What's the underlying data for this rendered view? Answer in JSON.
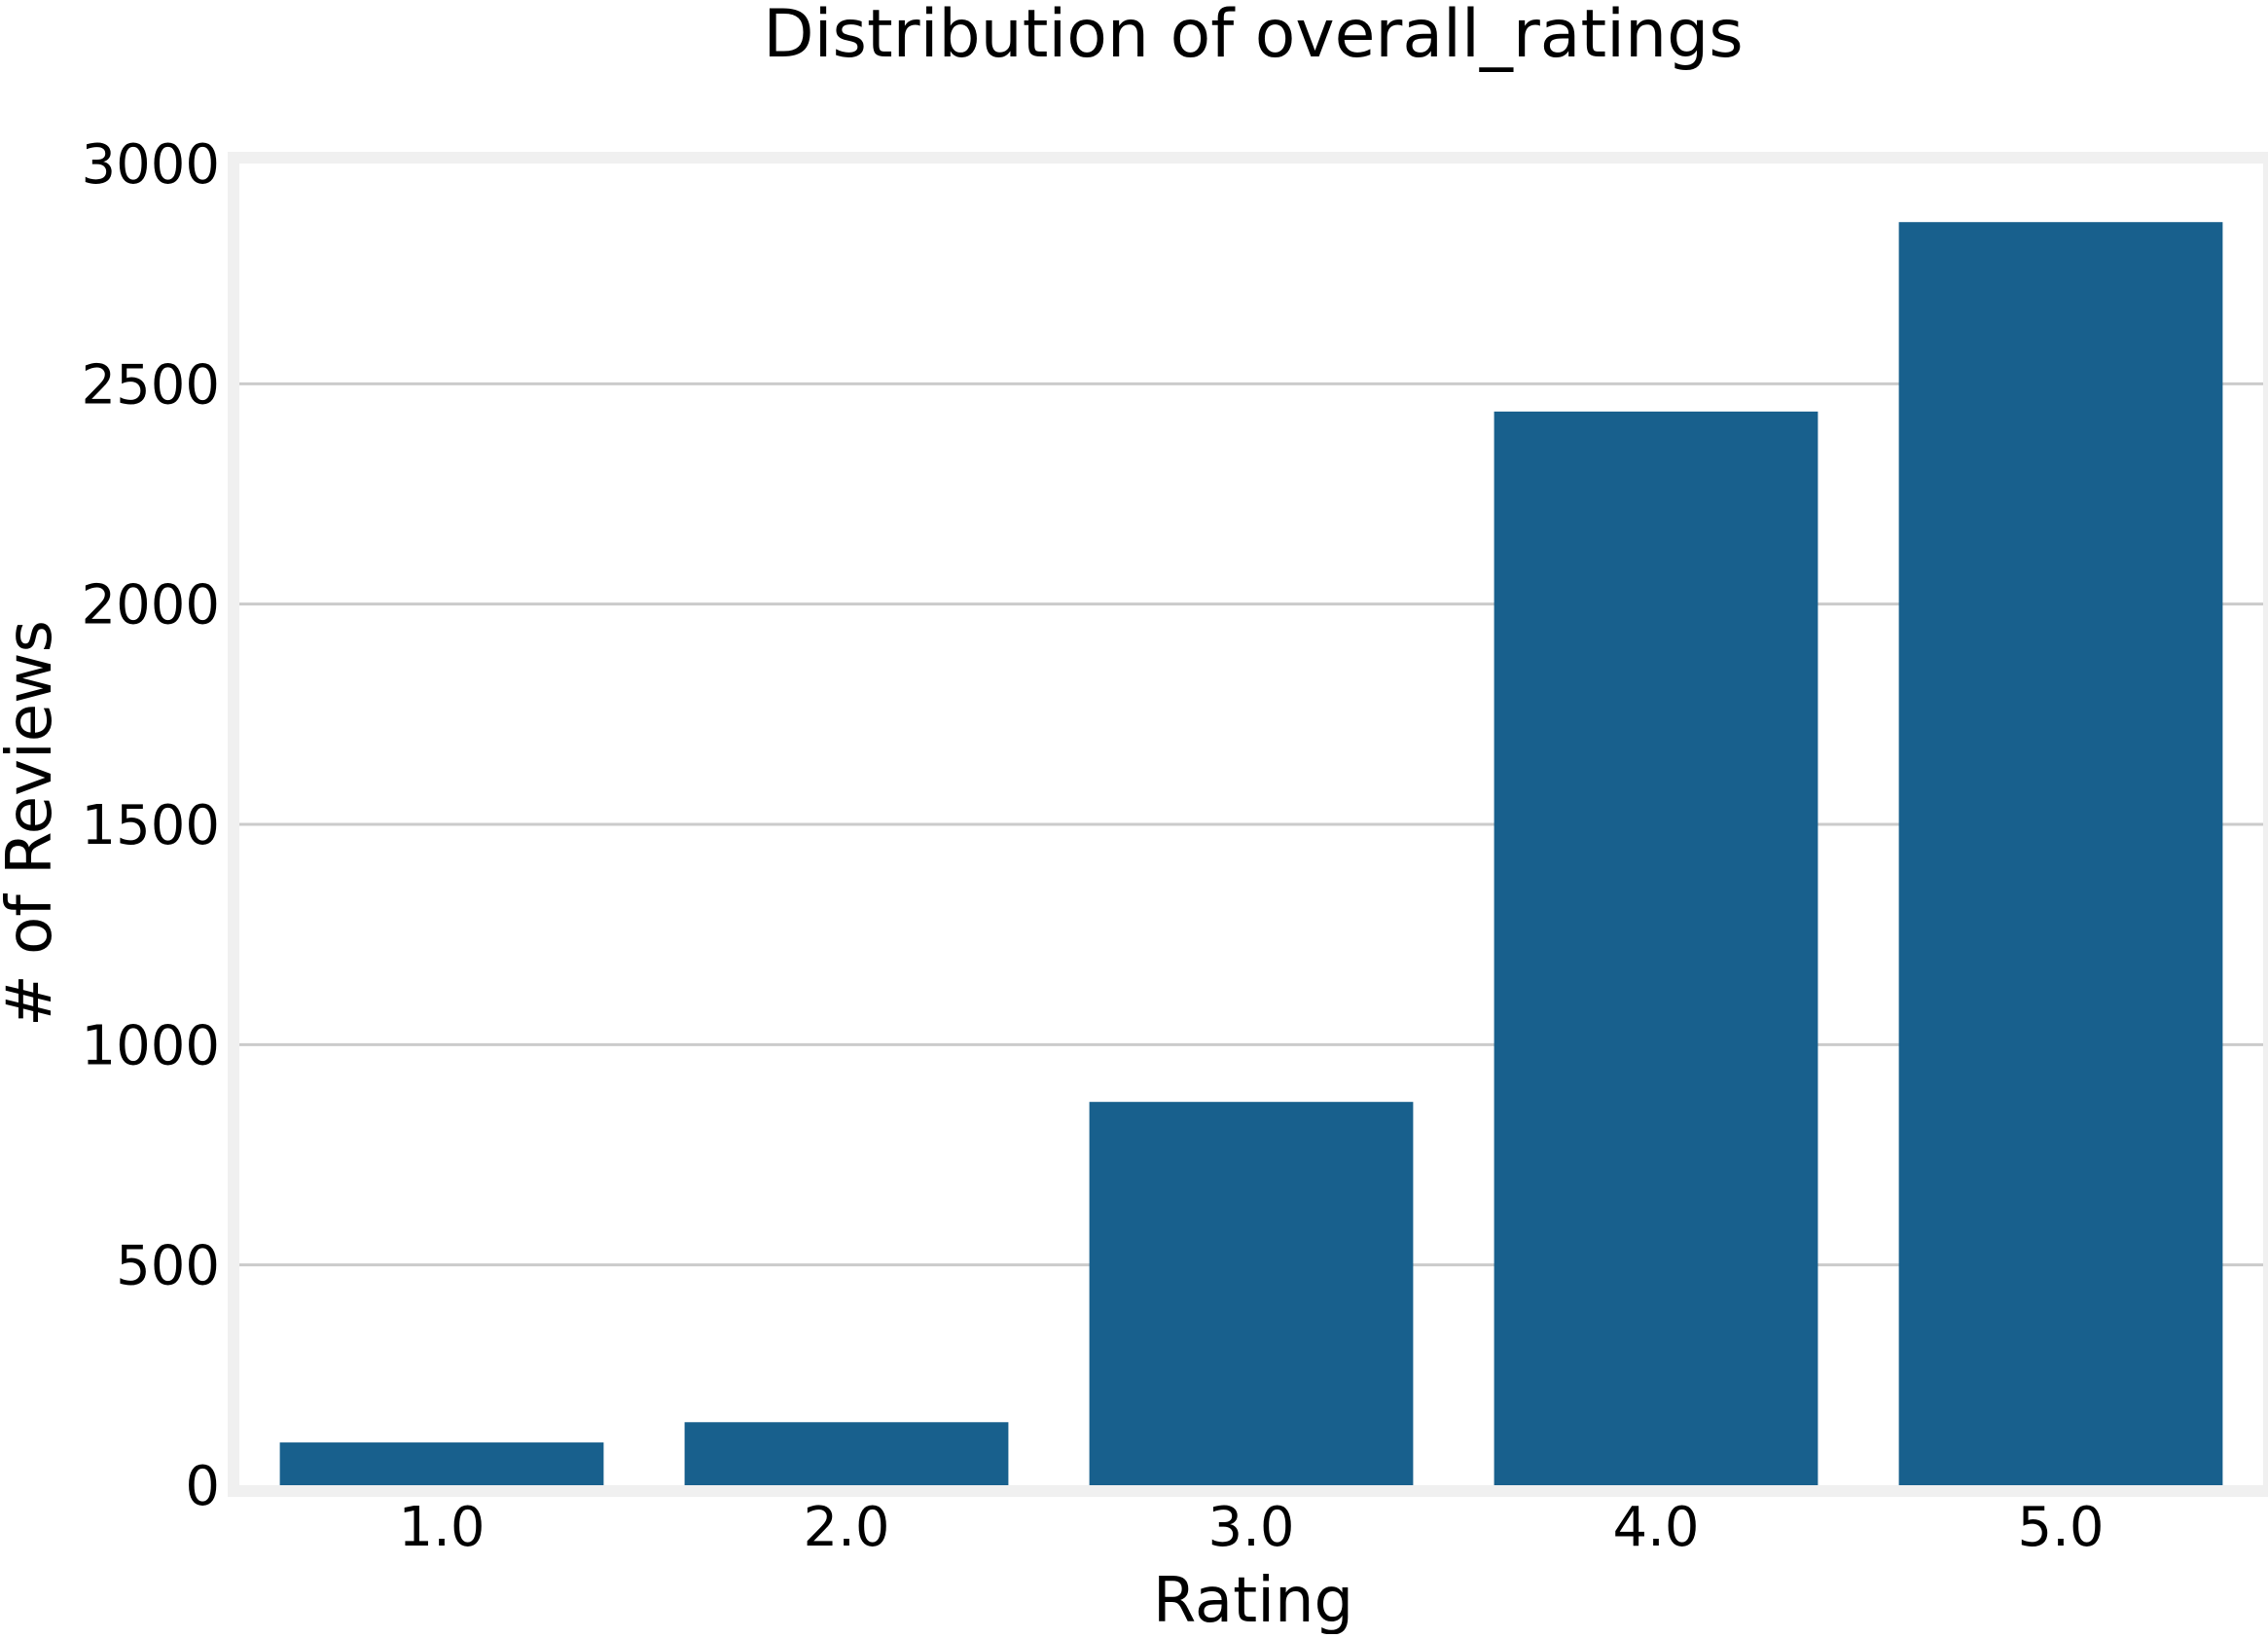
{
  "chart_data": {
    "type": "bar",
    "title": "Distribution of overall_ratings",
    "xlabel": "Rating",
    "ylabel": "# of Reviews",
    "categories": [
      "1.0",
      "2.0",
      "3.0",
      "4.0",
      "5.0"
    ],
    "values": [
      97,
      143,
      870,
      2437,
      2867
    ],
    "ylim": [
      0,
      3000
    ],
    "yticks": [
      0,
      500,
      1000,
      1500,
      2000,
      2500,
      3000
    ],
    "grid": "horizontal",
    "legend": "none"
  },
  "colors": {
    "bar": "#18608d",
    "grid": "#cbcbcb",
    "frame": "#f0f0f0",
    "background": "#ffffff",
    "text": "#000000"
  }
}
